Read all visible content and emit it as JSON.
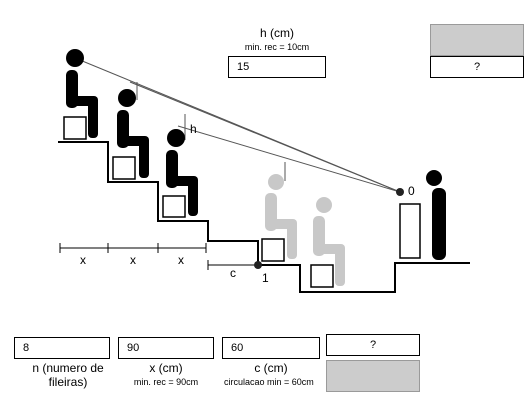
{
  "h_panel": {
    "title": "h (cm)",
    "note": "min. rec = 10cm",
    "value": "15"
  },
  "top_result": {
    "label": "?"
  },
  "bottom_result": {
    "label": "?"
  },
  "diagram": {
    "h_label": "h",
    "x_labels": [
      "x",
      "x",
      "x"
    ],
    "c_label": "c",
    "point_0": "0",
    "point_1": "1"
  },
  "inputs": {
    "n": {
      "value": "8",
      "label": "n (numero de fileiras)"
    },
    "x": {
      "value": "90",
      "label": "x (cm)",
      "note": "min. rec = 90cm"
    },
    "c": {
      "value": "60",
      "label": "c (cm)",
      "note": "circulacao min = 60cm"
    }
  },
  "colors": {
    "result_fill": "#cccccc",
    "ghost_figure": "#c8c8c8",
    "figure": "#000000"
  }
}
